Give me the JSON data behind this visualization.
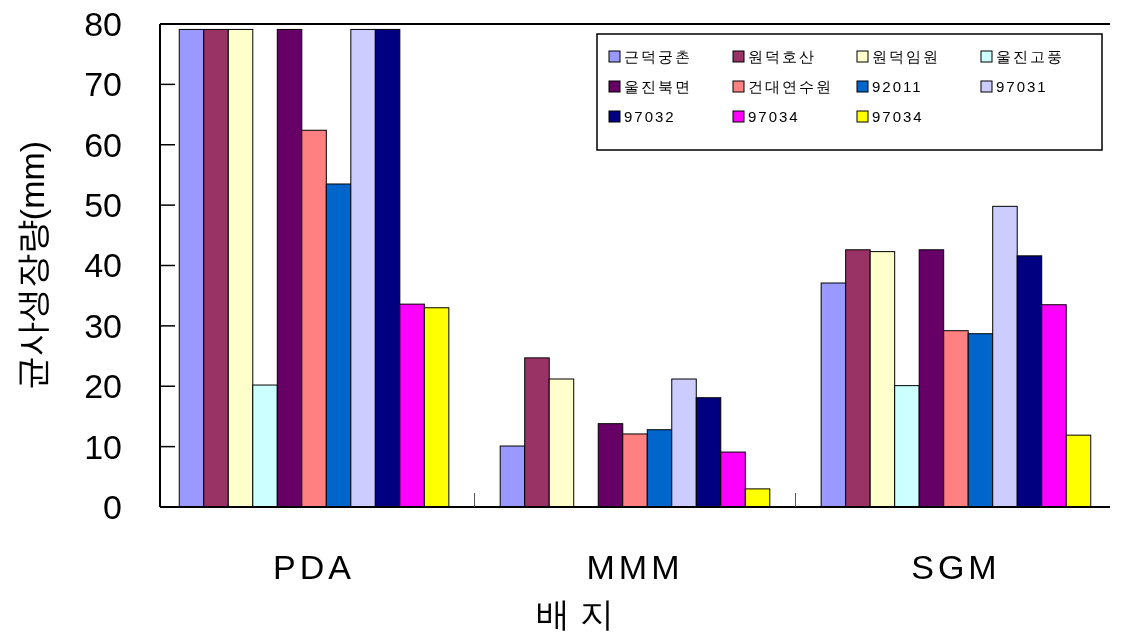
{
  "chart_data": {
    "type": "bar",
    "xlabel": "배 지",
    "ylabel": "균사생장량(mm)",
    "categories": [
      "PDA",
      "MMM",
      "SGM"
    ],
    "series": [
      {
        "name": "근덕궁촌",
        "color": "#9999ff",
        "values": [
          79.1,
          10.1,
          37.1
        ]
      },
      {
        "name": "원덕호산",
        "color": "#993366",
        "values": [
          79.1,
          24.7,
          42.6
        ]
      },
      {
        "name": "원덕임원",
        "color": "#ffffcc",
        "values": [
          79.1,
          21.2,
          42.3
        ]
      },
      {
        "name": "울진고풍",
        "color": "#ccffff",
        "values": [
          20.2,
          0,
          20.1
        ]
      },
      {
        "name": "울진북면",
        "color": "#660066",
        "values": [
          79.1,
          13.8,
          42.6
        ]
      },
      {
        "name": "건대연수원",
        "color": "#ff8080",
        "values": [
          62.4,
          12.1,
          29.2
        ]
      },
      {
        "name": "92011",
        "color": "#0066cc",
        "values": [
          53.5,
          12.8,
          28.7
        ]
      },
      {
        "name": "97031",
        "color": "#ccccff",
        "values": [
          79.1,
          21.2,
          49.8
        ]
      },
      {
        "name": "97032",
        "color": "#000080",
        "values": [
          79.1,
          18.1,
          41.6
        ]
      },
      {
        "name": "97034",
        "color": "#ff00ff",
        "values": [
          33.6,
          9.1,
          33.5
        ]
      },
      {
        "name": "97034",
        "color": "#ffff00",
        "values": [
          33.0,
          3.0,
          11.9
        ]
      }
    ],
    "ylim": [
      0,
      80
    ],
    "yticks": [
      0,
      10,
      20,
      30,
      40,
      50,
      60,
      70,
      80
    ],
    "grid": false,
    "legend": "top right"
  }
}
